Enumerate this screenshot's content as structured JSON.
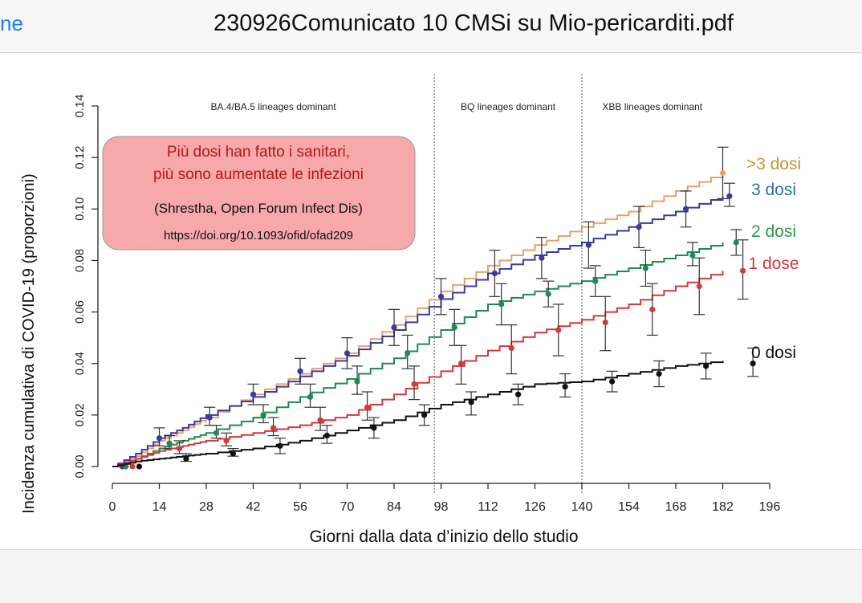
{
  "window": {
    "back_label": "ne",
    "title": "230926Comunicato 10 CMSi su Mio-pericarditi.pdf"
  },
  "annotation": {
    "line1": "Più dosi han fatto i sanitari,",
    "line2": "più sono aumentate le infezioni",
    "citation": "(Shrestha, Open Forum Infect Dis)",
    "doi": "https://doi.org/10.1093/ofid/ofad209"
  },
  "chart_data": {
    "type": "line",
    "xlabel": "Giorni dalla data d’inizio dello studio",
    "ylabel": "Incidenza cumulativa di COVID-19 (proporzioni)",
    "xlim": [
      0,
      196
    ],
    "ylim": [
      0,
      0.14
    ],
    "x_ticks": [
      "0",
      "14",
      "28",
      "42",
      "56",
      "70",
      "84",
      "98",
      "112",
      "126",
      "140",
      "154",
      "168",
      "182",
      "196"
    ],
    "y_ticks": [
      "0.00",
      "0.02",
      "0.04",
      "0.06",
      "0.08",
      "0.10",
      "0.12",
      "0.14"
    ],
    "periods": [
      {
        "label": "BA.4/BA.5 lineages dominant",
        "start": 0,
        "end": 96
      },
      {
        "label": "BQ lineages dominant",
        "start": 96,
        "end": 140
      },
      {
        "label": "XBB lineages dominant",
        "start": 140,
        "end": 182
      }
    ],
    "dividers": [
      96,
      140
    ],
    "series": [
      {
        "name": ">3 dosi",
        "color": "#e8a06a",
        "label_color": "#c8962e",
        "curve": [
          [
            0,
            0
          ],
          [
            7,
            0.004
          ],
          [
            14,
            0.01
          ],
          [
            21,
            0.014
          ],
          [
            28,
            0.019
          ],
          [
            42,
            0.028
          ],
          [
            56,
            0.036
          ],
          [
            70,
            0.044
          ],
          [
            84,
            0.055
          ],
          [
            98,
            0.068
          ],
          [
            112,
            0.078
          ],
          [
            126,
            0.086
          ],
          [
            140,
            0.093
          ],
          [
            154,
            0.099
          ],
          [
            168,
            0.107
          ],
          [
            182,
            0.114
          ]
        ],
        "points": [],
        "end_point": {
          "x": 182,
          "y": 0.114,
          "lo": 0.104,
          "hi": 0.124
        }
      },
      {
        "name": "3 dosi",
        "color": "#3a3aa0",
        "label_color": "#2f6db5",
        "curve": [
          [
            0,
            0
          ],
          [
            7,
            0.005
          ],
          [
            14,
            0.011
          ],
          [
            21,
            0.015
          ],
          [
            28,
            0.02
          ],
          [
            42,
            0.027
          ],
          [
            56,
            0.035
          ],
          [
            70,
            0.043
          ],
          [
            84,
            0.053
          ],
          [
            98,
            0.065
          ],
          [
            112,
            0.075
          ],
          [
            126,
            0.082
          ],
          [
            140,
            0.087
          ],
          [
            154,
            0.093
          ],
          [
            168,
            0.099
          ],
          [
            182,
            0.105
          ]
        ],
        "points": [
          {
            "x": 3,
            "y": 0.0,
            "lo": 0.0,
            "hi": 0.0
          },
          {
            "x": 14,
            "y": 0.011,
            "lo": 0.008,
            "hi": 0.015
          },
          {
            "x": 29,
            "y": 0.019,
            "lo": 0.016,
            "hi": 0.023
          },
          {
            "x": 42,
            "y": 0.028,
            "lo": 0.024,
            "hi": 0.032
          },
          {
            "x": 56,
            "y": 0.037,
            "lo": 0.032,
            "hi": 0.042
          },
          {
            "x": 70,
            "y": 0.044,
            "lo": 0.038,
            "hi": 0.05
          },
          {
            "x": 84,
            "y": 0.054,
            "lo": 0.047,
            "hi": 0.061
          },
          {
            "x": 98,
            "y": 0.066,
            "lo": 0.059,
            "hi": 0.073
          },
          {
            "x": 114,
            "y": 0.075,
            "lo": 0.066,
            "hi": 0.084
          },
          {
            "x": 128,
            "y": 0.081,
            "lo": 0.073,
            "hi": 0.089
          },
          {
            "x": 142,
            "y": 0.086,
            "lo": 0.077,
            "hi": 0.095
          },
          {
            "x": 157,
            "y": 0.093,
            "lo": 0.085,
            "hi": 0.101
          },
          {
            "x": 171,
            "y": 0.1,
            "lo": 0.093,
            "hi": 0.107
          },
          {
            "x": 184,
            "y": 0.105,
            "lo": 0.101,
            "hi": 0.11
          }
        ]
      },
      {
        "name": "2 dosi",
        "color": "#1e8a52",
        "label_color": "#2a9a4a",
        "curve": [
          [
            0,
            0
          ],
          [
            7,
            0.003
          ],
          [
            14,
            0.007
          ],
          [
            21,
            0.01
          ],
          [
            28,
            0.013
          ],
          [
            42,
            0.019
          ],
          [
            56,
            0.027
          ],
          [
            70,
            0.034
          ],
          [
            84,
            0.042
          ],
          [
            98,
            0.053
          ],
          [
            112,
            0.063
          ],
          [
            126,
            0.068
          ],
          [
            140,
            0.072
          ],
          [
            154,
            0.077
          ],
          [
            168,
            0.082
          ],
          [
            182,
            0.087
          ]
        ],
        "points": [
          {
            "x": 4,
            "y": 0.0,
            "lo": 0.0,
            "hi": 0.0
          },
          {
            "x": 17,
            "y": 0.009,
            "lo": 0.007,
            "hi": 0.012
          },
          {
            "x": 31,
            "y": 0.013,
            "lo": 0.011,
            "hi": 0.016
          },
          {
            "x": 45,
            "y": 0.02,
            "lo": 0.017,
            "hi": 0.024
          },
          {
            "x": 59,
            "y": 0.027,
            "lo": 0.023,
            "hi": 0.032
          },
          {
            "x": 73,
            "y": 0.033,
            "lo": 0.028,
            "hi": 0.039
          },
          {
            "x": 88,
            "y": 0.044,
            "lo": 0.038,
            "hi": 0.051
          },
          {
            "x": 102,
            "y": 0.054,
            "lo": 0.047,
            "hi": 0.061
          },
          {
            "x": 116,
            "y": 0.063,
            "lo": 0.055,
            "hi": 0.071
          },
          {
            "x": 130,
            "y": 0.067,
            "lo": 0.062,
            "hi": 0.072
          },
          {
            "x": 144,
            "y": 0.072,
            "lo": 0.066,
            "hi": 0.078
          },
          {
            "x": 159,
            "y": 0.077,
            "lo": 0.07,
            "hi": 0.084
          },
          {
            "x": 173,
            "y": 0.082,
            "lo": 0.078,
            "hi": 0.087
          },
          {
            "x": 186,
            "y": 0.087,
            "lo": 0.082,
            "hi": 0.092
          }
        ]
      },
      {
        "name": "1 dose",
        "color": "#d03a3a",
        "label_color": "#c83a3a",
        "curve": [
          [
            0,
            0
          ],
          [
            7,
            0.003
          ],
          [
            14,
            0.006
          ],
          [
            21,
            0.008
          ],
          [
            28,
            0.01
          ],
          [
            42,
            0.013
          ],
          [
            56,
            0.016
          ],
          [
            70,
            0.02
          ],
          [
            84,
            0.028
          ],
          [
            98,
            0.037
          ],
          [
            112,
            0.045
          ],
          [
            126,
            0.052
          ],
          [
            140,
            0.057
          ],
          [
            154,
            0.063
          ],
          [
            168,
            0.07
          ],
          [
            182,
            0.076
          ]
        ],
        "points": [
          {
            "x": 6,
            "y": 0.0,
            "lo": 0.0,
            "hi": 0.0
          },
          {
            "x": 20,
            "y": 0.007,
            "lo": 0.005,
            "hi": 0.01
          },
          {
            "x": 34,
            "y": 0.01,
            "lo": 0.008,
            "hi": 0.013
          },
          {
            "x": 48,
            "y": 0.015,
            "lo": 0.012,
            "hi": 0.019
          },
          {
            "x": 62,
            "y": 0.018,
            "lo": 0.014,
            "hi": 0.023
          },
          {
            "x": 76,
            "y": 0.023,
            "lo": 0.018,
            "hi": 0.029
          },
          {
            "x": 90,
            "y": 0.032,
            "lo": 0.026,
            "hi": 0.039
          },
          {
            "x": 104,
            "y": 0.04,
            "lo": 0.032,
            "hi": 0.047
          },
          {
            "x": 119,
            "y": 0.046,
            "lo": 0.036,
            "hi": 0.055
          },
          {
            "x": 133,
            "y": 0.053,
            "lo": 0.043,
            "hi": 0.063
          },
          {
            "x": 147,
            "y": 0.056,
            "lo": 0.045,
            "hi": 0.066
          },
          {
            "x": 161,
            "y": 0.061,
            "lo": 0.051,
            "hi": 0.071
          },
          {
            "x": 175,
            "y": 0.07,
            "lo": 0.059,
            "hi": 0.081
          },
          {
            "x": 188,
            "y": 0.076,
            "lo": 0.065,
            "hi": 0.088
          }
        ]
      },
      {
        "name": "0 dosi",
        "color": "#111111",
        "label_color": "#111111",
        "curve": [
          [
            0,
            0
          ],
          [
            7,
            0.002
          ],
          [
            14,
            0.003
          ],
          [
            21,
            0.004
          ],
          [
            28,
            0.005
          ],
          [
            42,
            0.007
          ],
          [
            56,
            0.01
          ],
          [
            70,
            0.014
          ],
          [
            84,
            0.018
          ],
          [
            98,
            0.024
          ],
          [
            112,
            0.028
          ],
          [
            126,
            0.032
          ],
          [
            140,
            0.033
          ],
          [
            154,
            0.036
          ],
          [
            168,
            0.039
          ],
          [
            182,
            0.041
          ]
        ],
        "points": [
          {
            "x": 8,
            "y": 0.0,
            "lo": 0.0,
            "hi": 0.0
          },
          {
            "x": 22,
            "y": 0.003,
            "lo": 0.002,
            "hi": 0.005
          },
          {
            "x": 36,
            "y": 0.005,
            "lo": 0.004,
            "hi": 0.007
          },
          {
            "x": 50,
            "y": 0.008,
            "lo": 0.005,
            "hi": 0.011
          },
          {
            "x": 64,
            "y": 0.012,
            "lo": 0.009,
            "hi": 0.016
          },
          {
            "x": 78,
            "y": 0.015,
            "lo": 0.011,
            "hi": 0.019
          },
          {
            "x": 93,
            "y": 0.02,
            "lo": 0.016,
            "hi": 0.024
          },
          {
            "x": 107,
            "y": 0.025,
            "lo": 0.02,
            "hi": 0.029
          },
          {
            "x": 121,
            "y": 0.028,
            "lo": 0.024,
            "hi": 0.032
          },
          {
            "x": 135,
            "y": 0.031,
            "lo": 0.027,
            "hi": 0.036
          },
          {
            "x": 149,
            "y": 0.033,
            "lo": 0.029,
            "hi": 0.037
          },
          {
            "x": 163,
            "y": 0.036,
            "lo": 0.031,
            "hi": 0.041
          },
          {
            "x": 177,
            "y": 0.039,
            "lo": 0.034,
            "hi": 0.044
          },
          {
            "x": 191,
            "y": 0.04,
            "lo": 0.035,
            "hi": 0.046
          }
        ]
      }
    ]
  }
}
